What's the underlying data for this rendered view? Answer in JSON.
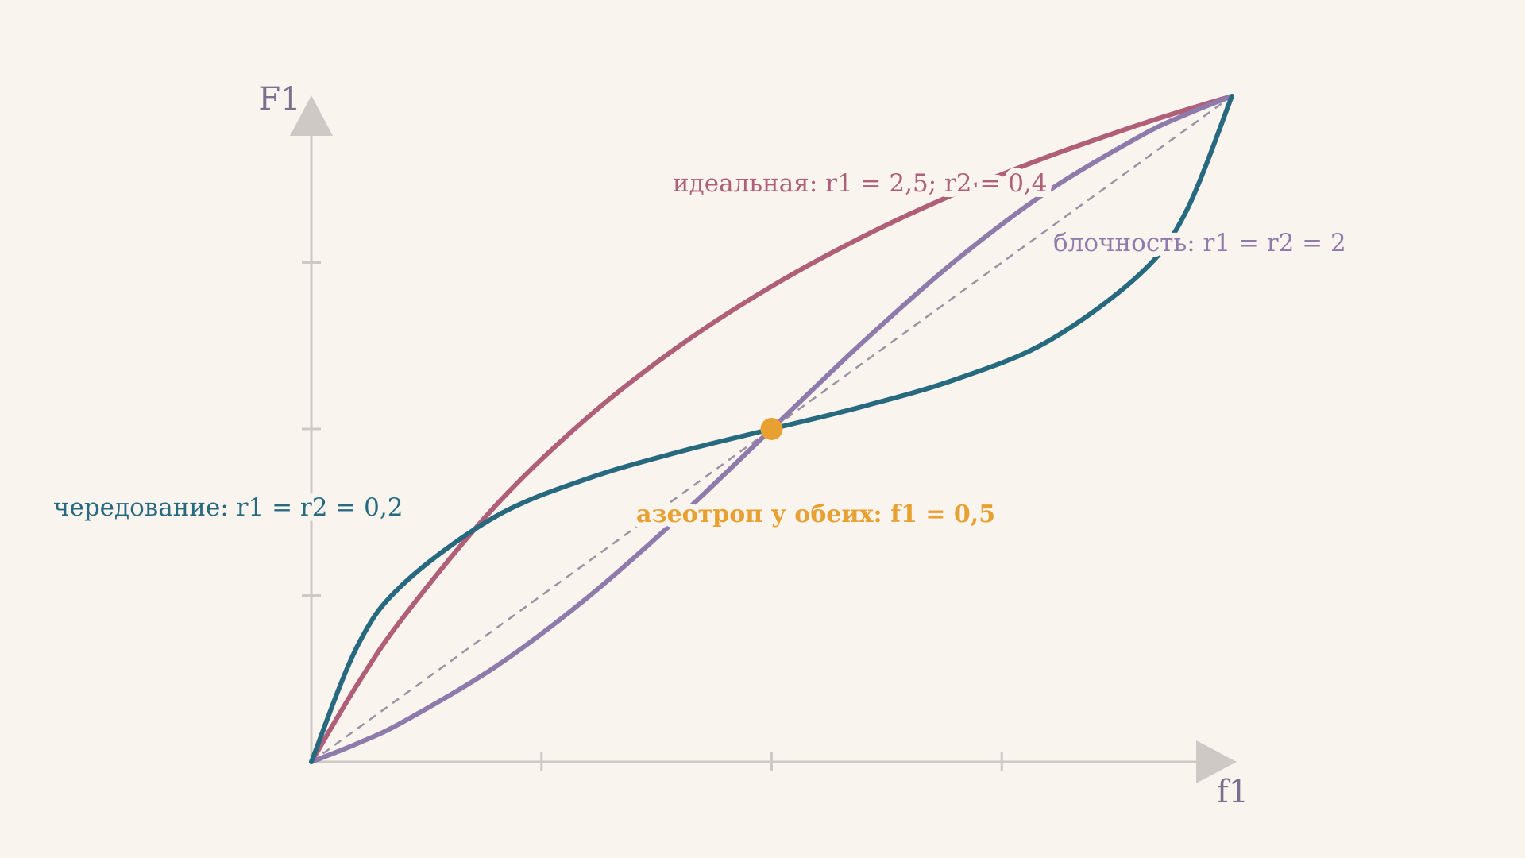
{
  "chart_data": {
    "type": "line",
    "xlabel": "f1",
    "ylabel": "F1",
    "x": [
      0,
      0.05,
      0.1,
      0.2,
      0.3,
      0.4,
      0.5,
      0.6,
      0.7,
      0.8,
      0.9,
      0.95,
      1
    ],
    "series": [
      {
        "name": "идеальная: r1 = 2,5; r2 = 0,4",
        "color": "#b05f78",
        "values": [
          0,
          0.1163,
          0.2174,
          0.3846,
          0.5172,
          0.625,
          0.7143,
          0.7895,
          0.8537,
          0.9091,
          0.9574,
          0.9794,
          1
        ]
      },
      {
        "name": "блочность: r1 = r2 = 2",
        "color": "#8f7bab",
        "values": [
          0,
          0.0276,
          0.0604,
          0.1429,
          0.2468,
          0.3684,
          0.5,
          0.6316,
          0.7532,
          0.8571,
          0.9396,
          0.9724,
          1
        ]
      },
      {
        "name": "чередование: r1 = r2 = 0,2",
        "color": "#276a80",
        "values": [
          0,
          0.1739,
          0.2674,
          0.3684,
          0.4254,
          0.4658,
          0.5,
          0.5342,
          0.5746,
          0.6316,
          0.7326,
          0.8261,
          1
        ]
      }
    ],
    "point": {
      "x": 0.5,
      "y": 0.5,
      "label": "азеотроп у обеих: f1 = 0,5",
      "color": "#e8a030"
    },
    "xlim": [
      0,
      1
    ],
    "ylim": [
      0,
      1
    ],
    "xticks": [
      0.25,
      0.5,
      0.75
    ],
    "yticks": [
      0.25,
      0.5,
      0.75
    ]
  }
}
